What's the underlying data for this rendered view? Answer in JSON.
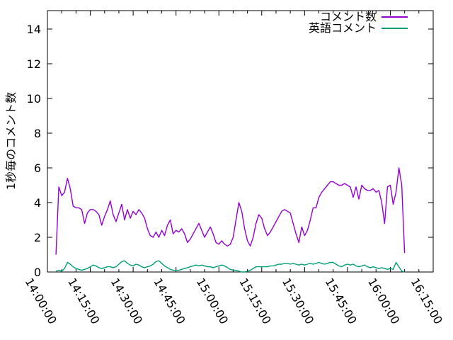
{
  "chart_data": {
    "type": "line",
    "title": "",
    "xlabel": "",
    "ylabel": "1秒毎のコメント数",
    "ylim": [
      0,
      15
    ],
    "y_ticks": [
      0,
      2,
      4,
      6,
      8,
      10,
      12,
      14
    ],
    "x_ticks": [
      "14:00:00",
      "14:15:00",
      "14:30:00",
      "14:45:00",
      "15:00:00",
      "15:15:00",
      "15:30:00",
      "15:45:00",
      "16:00:00",
      "16:15:00"
    ],
    "x_minor_step_minutes": 5,
    "x_range_minutes": 135,
    "grid": false,
    "legend_position": "top-right",
    "axis_color": "#000000",
    "x_start": "14:03:00",
    "x_step_seconds": 60,
    "series": [
      {
        "name": "コメント数",
        "color": "#9400d3",
        "values": [
          1.0,
          4.9,
          4.4,
          4.6,
          5.4,
          4.8,
          3.8,
          3.7,
          3.7,
          3.6,
          2.8,
          3.4,
          3.6,
          3.6,
          3.5,
          3.3,
          2.7,
          3.2,
          3.6,
          4.1,
          3.3,
          2.9,
          3.4,
          3.9,
          3.0,
          3.6,
          3.1,
          3.5,
          3.3,
          3.6,
          3.4,
          3.1,
          2.5,
          2.1,
          2.0,
          2.3,
          2.0,
          2.4,
          2.1,
          2.7,
          3.0,
          2.2,
          2.4,
          2.3,
          2.5,
          2.2,
          1.7,
          1.9,
          2.2,
          2.5,
          2.8,
          2.4,
          2.0,
          2.3,
          2.6,
          2.2,
          1.7,
          1.6,
          1.8,
          1.6,
          1.5,
          1.6,
          2.0,
          3.0,
          4.0,
          3.5,
          2.5,
          1.8,
          1.5,
          2.0,
          2.8,
          3.3,
          3.1,
          2.5,
          2.1,
          2.3,
          2.6,
          2.9,
          3.2,
          3.5,
          3.6,
          3.5,
          3.4,
          2.8,
          2.2,
          1.7,
          2.6,
          2.1,
          2.4,
          3.0,
          3.7,
          3.7,
          4.3,
          4.6,
          4.8,
          5.0,
          5.2,
          5.2,
          5.1,
          5.0,
          5.0,
          5.1,
          5.0,
          4.9,
          4.3,
          4.9,
          4.2,
          5.0,
          4.8,
          4.7,
          4.7,
          4.8,
          4.6,
          4.7,
          4.0,
          2.8,
          4.9,
          5.0,
          3.9,
          4.6,
          6.0,
          5.0,
          1.1
        ]
      },
      {
        "name": "英語コメント",
        "color": "#009e73",
        "values": [
          0.05,
          0.1,
          0.05,
          0.2,
          0.55,
          0.45,
          0.3,
          0.2,
          0.15,
          0.1,
          0.15,
          0.2,
          0.3,
          0.4,
          0.35,
          0.25,
          0.2,
          0.25,
          0.3,
          0.3,
          0.25,
          0.3,
          0.45,
          0.6,
          0.65,
          0.5,
          0.4,
          0.35,
          0.45,
          0.4,
          0.3,
          0.25,
          0.3,
          0.35,
          0.45,
          0.6,
          0.65,
          0.5,
          0.35,
          0.25,
          0.15,
          0.1,
          0.1,
          0.1,
          0.15,
          0.2,
          0.25,
          0.3,
          0.35,
          0.4,
          0.35,
          0.4,
          0.35,
          0.3,
          0.3,
          0.25,
          0.3,
          0.35,
          0.4,
          0.35,
          0.25,
          0.15,
          0.1,
          0.1,
          0.05,
          0.0,
          0.0,
          0.05,
          0.1,
          0.2,
          0.3,
          0.3,
          0.3,
          0.3,
          0.3,
          0.35,
          0.35,
          0.4,
          0.45,
          0.45,
          0.5,
          0.5,
          0.45,
          0.5,
          0.45,
          0.4,
          0.45,
          0.4,
          0.45,
          0.5,
          0.45,
          0.5,
          0.55,
          0.5,
          0.45,
          0.5,
          0.55,
          0.55,
          0.45,
          0.35,
          0.3,
          0.4,
          0.45,
          0.4,
          0.45,
          0.35,
          0.3,
          0.35,
          0.4,
          0.3,
          0.25,
          0.3,
          0.25,
          0.2,
          0.25,
          0.2,
          0.15,
          0.2,
          0.15,
          0.55,
          0.3,
          0.05,
          0.0
        ]
      }
    ]
  }
}
